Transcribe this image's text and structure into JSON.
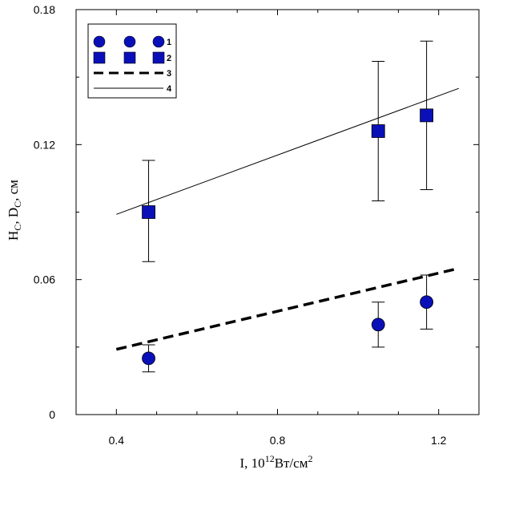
{
  "chart_data": {
    "type": "scatter",
    "xlabel": {
      "prefix": "I, 10",
      "exp": "12",
      "unit": "Вт/см",
      "unit_exp": "2"
    },
    "ylabel": {
      "H": "H",
      "Hsub": "C",
      "sep": ", D",
      "Dsub": "C",
      "unit": ", см"
    },
    "xlim": [
      0.3,
      1.3
    ],
    "ylim": [
      0,
      0.18
    ],
    "x_ticks": [
      0.4,
      0.8,
      1.2
    ],
    "x_tick_labels": [
      "0.4",
      "0.8",
      "1.2"
    ],
    "y_ticks": [
      0,
      0.06,
      0.12,
      0.18
    ],
    "y_tick_labels": [
      "0",
      "0.06",
      "0.12",
      "0.18"
    ],
    "grid": false,
    "legend_position": "top-left",
    "series": [
      {
        "name": "1",
        "marker": "circle",
        "color": "#0a10b8",
        "points": [
          {
            "x": 0.48,
            "y": 0.025,
            "err_low": 0.019,
            "err_high": 0.031
          },
          {
            "x": 1.05,
            "y": 0.04,
            "err_low": 0.03,
            "err_high": 0.05
          },
          {
            "x": 1.17,
            "y": 0.05,
            "err_low": 0.038,
            "err_high": 0.062
          }
        ]
      },
      {
        "name": "2",
        "marker": "square",
        "color": "#0a10b8",
        "points": [
          {
            "x": 0.48,
            "y": 0.09,
            "err_low": 0.068,
            "err_high": 0.113
          },
          {
            "x": 1.05,
            "y": 0.126,
            "err_low": 0.095,
            "err_high": 0.157
          },
          {
            "x": 1.17,
            "y": 0.133,
            "err_low": 0.1,
            "err_high": 0.166
          }
        ]
      },
      {
        "name": "3",
        "style": "dashed",
        "line": [
          {
            "x": 0.4,
            "y": 0.029
          },
          {
            "x": 1.25,
            "y": 0.065
          }
        ]
      },
      {
        "name": "4",
        "style": "solid",
        "line": [
          {
            "x": 0.4,
            "y": 0.089
          },
          {
            "x": 1.25,
            "y": 0.145
          }
        ]
      }
    ]
  }
}
